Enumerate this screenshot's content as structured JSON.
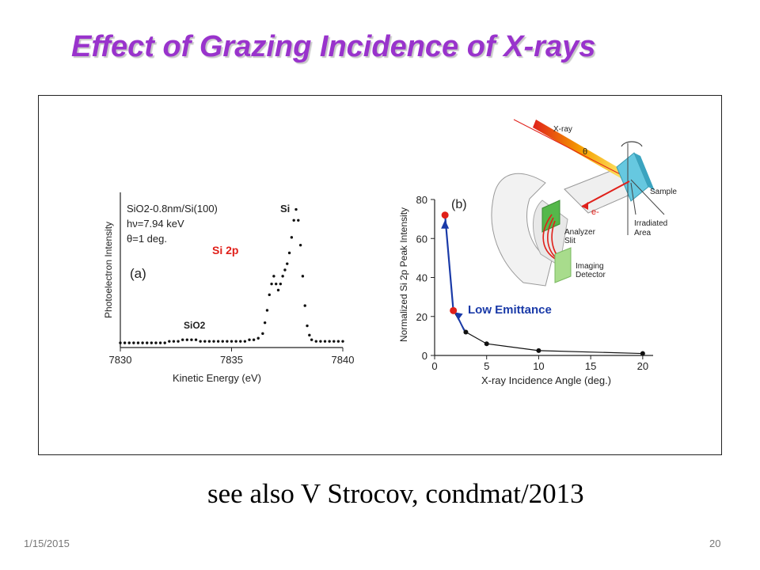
{
  "slide": {
    "title": "Effect of Grazing Incidence of X-rays",
    "caption": "see also V Strocov, condmat/2013",
    "date": "1/15/2015",
    "page_number": "20"
  },
  "colors": {
    "title": "#9933cc",
    "panel_a_label": "#e0201a",
    "low_emittance": "#1a3aa8",
    "arrow": "#1a3aa8",
    "highlight_point": "#e0201a"
  },
  "chart_data": [
    {
      "type": "scatter",
      "panel": "(a)",
      "xlabel": "Kinetic Energy (eV)",
      "ylabel": "Photoelectron Intensity",
      "xlim": [
        7830,
        7840
      ],
      "x_ticks": [
        "7830",
        "7835",
        "7840"
      ],
      "y_ticks_shown": false,
      "info_lines": [
        "SiO2-0.8nm/Si(100)",
        "hν=7.94 keV",
        "θ=1 deg."
      ],
      "series_label": "Si 2p",
      "peak_labels": [
        "Si",
        "SiO2"
      ],
      "points": [
        [
          7830.0,
          0.03
        ],
        [
          7830.2,
          0.03
        ],
        [
          7830.4,
          0.03
        ],
        [
          7830.6,
          0.03
        ],
        [
          7830.8,
          0.03
        ],
        [
          7831.0,
          0.03
        ],
        [
          7831.2,
          0.03
        ],
        [
          7831.4,
          0.03
        ],
        [
          7831.6,
          0.03
        ],
        [
          7831.8,
          0.03
        ],
        [
          7832.0,
          0.03
        ],
        [
          7832.2,
          0.04
        ],
        [
          7832.4,
          0.04
        ],
        [
          7832.6,
          0.04
        ],
        [
          7832.8,
          0.05
        ],
        [
          7833.0,
          0.05
        ],
        [
          7833.2,
          0.05
        ],
        [
          7833.4,
          0.05
        ],
        [
          7833.6,
          0.04
        ],
        [
          7833.8,
          0.04
        ],
        [
          7834.0,
          0.04
        ],
        [
          7834.2,
          0.04
        ],
        [
          7834.4,
          0.04
        ],
        [
          7834.6,
          0.04
        ],
        [
          7834.8,
          0.04
        ],
        [
          7835.0,
          0.04
        ],
        [
          7835.2,
          0.04
        ],
        [
          7835.4,
          0.04
        ],
        [
          7835.6,
          0.04
        ],
        [
          7835.8,
          0.05
        ],
        [
          7836.0,
          0.05
        ],
        [
          7836.2,
          0.06
        ],
        [
          7836.4,
          0.09
        ],
        [
          7836.5,
          0.16
        ],
        [
          7836.6,
          0.24
        ],
        [
          7836.7,
          0.34
        ],
        [
          7836.8,
          0.41
        ],
        [
          7836.9,
          0.46
        ],
        [
          7837.0,
          0.41
        ],
        [
          7837.1,
          0.37
        ],
        [
          7837.2,
          0.41
        ],
        [
          7837.3,
          0.46
        ],
        [
          7837.4,
          0.5
        ],
        [
          7837.5,
          0.54
        ],
        [
          7837.6,
          0.61
        ],
        [
          7837.7,
          0.71
        ],
        [
          7837.8,
          0.82
        ],
        [
          7837.9,
          0.89
        ],
        [
          7838.0,
          0.82
        ],
        [
          7838.1,
          0.66
        ],
        [
          7838.2,
          0.46
        ],
        [
          7838.3,
          0.27
        ],
        [
          7838.4,
          0.14
        ],
        [
          7838.5,
          0.08
        ],
        [
          7838.6,
          0.05
        ],
        [
          7838.8,
          0.04
        ],
        [
          7839.0,
          0.04
        ],
        [
          7839.2,
          0.04
        ],
        [
          7839.4,
          0.04
        ],
        [
          7839.6,
          0.04
        ],
        [
          7839.8,
          0.04
        ],
        [
          7840.0,
          0.04
        ]
      ]
    },
    {
      "type": "line",
      "panel": "(b)",
      "xlabel": "X-ray Incidence Angle  (deg.)",
      "ylabel": "Normalized Si 2p Peak Intensity",
      "xlim": [
        0,
        21
      ],
      "ylim": [
        0,
        80
      ],
      "x_ticks": [
        0,
        5,
        10,
        15,
        20
      ],
      "y_ticks": [
        0,
        20,
        40,
        60,
        80
      ],
      "points": [
        [
          1,
          72
        ],
        [
          1.8,
          23
        ],
        [
          3,
          12
        ],
        [
          5,
          6
        ],
        [
          10,
          2.5
        ],
        [
          20,
          1
        ]
      ],
      "highlighted_points": [
        0,
        1
      ],
      "annotation": "Low Emittance"
    }
  ],
  "schematic": {
    "labels": {
      "xray": "X-ray",
      "theta": "θ",
      "sample": "Sample",
      "electron": "e-",
      "analyzer": "Analyzer",
      "slit": "Slit",
      "irradiated": "Irradiated",
      "area": "Area",
      "imaging": "Imaging",
      "detector": "Detector"
    }
  }
}
